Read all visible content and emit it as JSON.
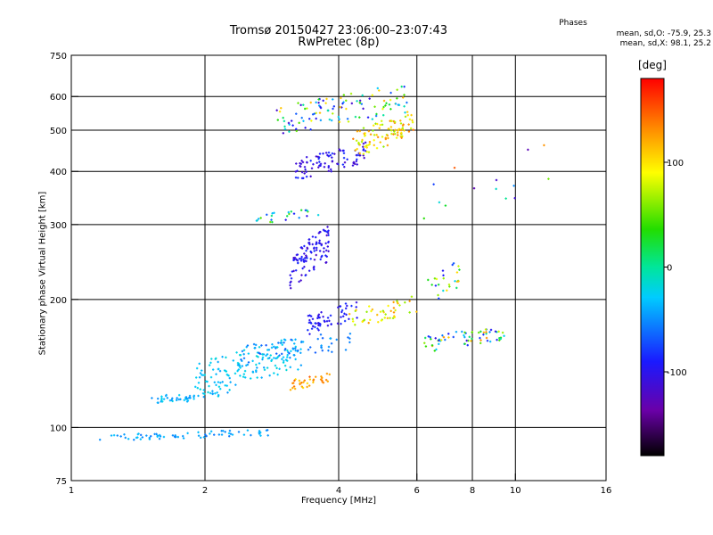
{
  "header": {
    "title_line1": "Tromsø 20150427 23:06:00–23:07:43",
    "title_line2": "RwPretec (8p)"
  },
  "phase_stats": {
    "heading": "Phases",
    "line_o": "mean, sd,O:  -75.9, 25.3",
    "line_x": "mean, sd,X:  98.1, 25.2"
  },
  "colorbar": {
    "unit_label": "[deg]",
    "ticks": [
      "100",
      "0",
      "-100"
    ],
    "tick_values": [
      100,
      0,
      -100
    ],
    "range": [
      -180,
      180
    ]
  },
  "chart_data": {
    "type": "scatter",
    "title": "Tromsø 20150427 23:06:00–23:07:43",
    "subtitle": "RwPretec (8p)",
    "xlabel": "Frequency [MHz]",
    "ylabel": "Stationary phase Virtual Height [km]",
    "x_scale": "log",
    "y_scale": "log",
    "xlim": [
      1,
      16
    ],
    "ylim": [
      75,
      750
    ],
    "x_ticks": [
      "1",
      "2",
      "4",
      "6",
      "8",
      "10",
      "16"
    ],
    "x_tick_values": [
      1,
      2,
      4,
      6,
      8,
      10,
      16
    ],
    "y_ticks": [
      "75",
      "100",
      "200",
      "300",
      "400",
      "500",
      "600",
      "750"
    ],
    "y_tick_values": [
      75,
      100,
      200,
      300,
      400,
      500,
      600,
      750
    ],
    "grid_x": [
      2,
      4,
      6,
      8,
      10
    ],
    "grid_y": [
      100,
      200,
      300,
      400,
      500,
      600
    ],
    "color_encoding": "phase [deg]",
    "clusters": [
      {
        "f_range": [
          1.15,
          2.8
        ],
        "h_range": [
          93,
          99
        ],
        "phase_range": [
          -60,
          -30
        ],
        "count": 70
      },
      {
        "f_range": [
          1.5,
          2.3
        ],
        "h_range": [
          113,
          123
        ],
        "phase_range": [
          -50,
          -20
        ],
        "count": 50
      },
      {
        "f_range": [
          1.9,
          3.3
        ],
        "h_range": [
          118,
          165
        ],
        "phase_range": [
          -45,
          -15
        ],
        "count": 150
      },
      {
        "f_range": [
          2.4,
          4.3
        ],
        "h_range": [
          140,
          170
        ],
        "phase_range": [
          -70,
          -35
        ],
        "count": 60
      },
      {
        "f_range": [
          3.1,
          3.9
        ],
        "h_range": [
          122,
          135
        ],
        "phase_range": [
          100,
          150
        ],
        "count": 35
      },
      {
        "f_range": [
          3.4,
          4.4
        ],
        "h_range": [
          165,
          200
        ],
        "phase_range": [
          -110,
          -80
        ],
        "count": 60
      },
      {
        "f_range": [
          4.2,
          6.0
        ],
        "h_range": [
          170,
          205
        ],
        "phase_range": [
          60,
          130
        ],
        "count": 45
      },
      {
        "f_range": [
          6.2,
          9.5
        ],
        "h_range": [
          150,
          175
        ],
        "phase_range": [
          -110,
          130
        ],
        "count": 65
      },
      {
        "f_range": [
          6.3,
          7.5
        ],
        "h_range": [
          190,
          250
        ],
        "phase_range": [
          -100,
          120
        ],
        "count": 25
      },
      {
        "f_range": [
          3.1,
          3.8
        ],
        "h_range": [
          210,
          300
        ],
        "phase_range": [
          -120,
          -80
        ],
        "count": 110
      },
      {
        "f_range": [
          2.6,
          3.7
        ],
        "h_range": [
          300,
          330
        ],
        "phase_range": [
          -110,
          60
        ],
        "count": 25
      },
      {
        "f_range": [
          3.2,
          4.6
        ],
        "h_range": [
          380,
          470
        ],
        "phase_range": [
          -120,
          -80
        ],
        "count": 90
      },
      {
        "f_range": [
          4.3,
          5.9
        ],
        "h_range": [
          430,
          560
        ],
        "phase_range": [
          60,
          140
        ],
        "count": 100
      },
      {
        "f_range": [
          2.9,
          5.7
        ],
        "h_range": [
          480,
          650
        ],
        "phase_range": [
          -120,
          120
        ],
        "count": 110
      },
      {
        "f_range": [
          6.0,
          13.0
        ],
        "h_range": [
          300,
          480
        ],
        "phase_range": [
          -150,
          150
        ],
        "count": 14
      }
    ]
  }
}
